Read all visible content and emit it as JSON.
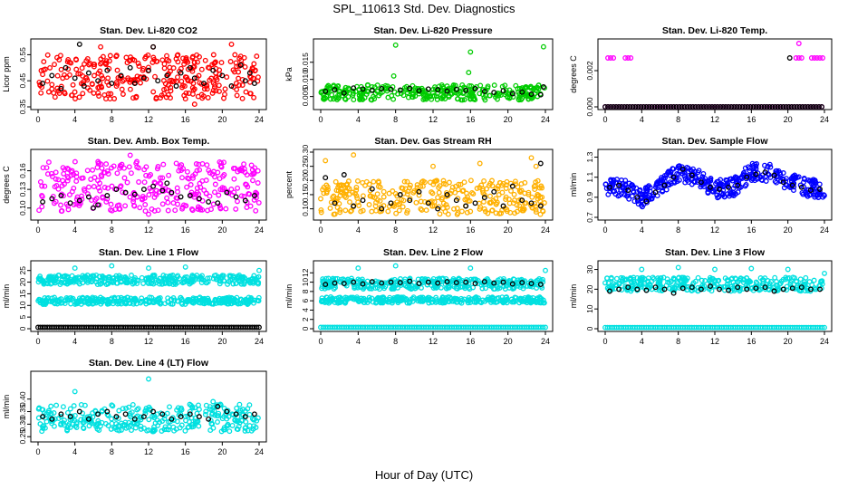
{
  "figure": {
    "title": "SPL_110613  Std. Dev. Diagnostics",
    "xlabel": "Hour of Day (UTC)"
  },
  "chart_data": [
    {
      "type": "scatter",
      "title": "Stan. Dev. Li-820 CO2",
      "ylabel": "Licor ppm",
      "xlim": [
        0,
        24
      ],
      "ylim": [
        0.35,
        0.6
      ],
      "xticks": [
        "0",
        "4",
        "8",
        "12",
        "16",
        "20",
        "24"
      ],
      "yticks": [
        "0.35",
        "0.45",
        "0.55"
      ],
      "series": [
        {
          "color": "#ff0000",
          "band": [
            0.38,
            0.55
          ],
          "outliers": [
            [
              6.8,
              0.58
            ],
            [
              12.5,
              0.58
            ],
            [
              21,
              0.59
            ],
            [
              17,
              0.36
            ]
          ]
        },
        {
          "color": "#000000",
          "x": [
            0.5,
            1.5,
            2.5,
            3,
            4,
            5,
            5.5,
            6.5,
            7.5,
            8,
            9,
            10,
            10.5,
            11.5,
            12,
            13,
            14,
            15,
            15.5,
            16.5,
            17,
            18,
            19,
            20,
            21,
            22,
            22.5,
            23,
            23.5,
            4.5,
            12.5
          ],
          "y": [
            0.44,
            0.47,
            0.42,
            0.5,
            0.46,
            0.43,
            0.48,
            0.45,
            0.49,
            0.44,
            0.47,
            0.5,
            0.44,
            0.46,
            0.49,
            0.45,
            0.47,
            0.43,
            0.48,
            0.5,
            0.46,
            0.44,
            0.49,
            0.47,
            0.43,
            0.51,
            0.45,
            0.48,
            0.44,
            0.59,
            0.58
          ]
        }
      ]
    },
    {
      "type": "scatter",
      "title": "Stan. Dev. Li-820 Pressure",
      "ylabel": "kPa",
      "xlim": [
        0,
        24
      ],
      "ylim": [
        0.002,
        0.021
      ],
      "xticks": [
        "0",
        "4",
        "8",
        "12",
        "16",
        "20",
        "24"
      ],
      "yticks": [
        "0.005",
        "0.010",
        "0.015"
      ],
      "series": [
        {
          "color": "#00cc00",
          "band": [
            0.004,
            0.0085
          ],
          "outliers": [
            [
              8,
              0.02
            ],
            [
              7.8,
              0.011
            ],
            [
              16,
              0.018
            ],
            [
              15.8,
              0.012
            ],
            [
              23.8,
              0.0195
            ]
          ]
        },
        {
          "color": "#000000",
          "x": [
            0.5,
            1.5,
            2.5,
            3.5,
            4.5,
            5.5,
            6.5,
            7.5,
            8.5,
            9.5,
            10.5,
            11.5,
            12.5,
            13.5,
            14.5,
            15.5,
            16.5,
            17.5,
            18.5,
            19.5,
            20.5,
            21.5,
            22.5,
            23.5,
            23.8
          ],
          "y": [
            0.0065,
            0.007,
            0.006,
            0.0075,
            0.0072,
            0.0068,
            0.0073,
            0.0071,
            0.0069,
            0.0074,
            0.0067,
            0.0072,
            0.007,
            0.0066,
            0.0071,
            0.0068,
            0.0073,
            0.0065,
            0.0062,
            0.0067,
            0.0058,
            0.0063,
            0.0057,
            0.0055,
            0.0078
          ]
        }
      ]
    },
    {
      "type": "scatter",
      "title": "Stan. Dev. Li-820 Temp.",
      "ylabel": "degrees C",
      "xlim": [
        0,
        24
      ],
      "ylim": [
        0,
        0.0036
      ],
      "xticks": [
        "0",
        "4",
        "8",
        "12",
        "16",
        "20",
        "24"
      ],
      "yticks": [
        "0.000",
        "0.002"
      ],
      "series": [
        {
          "color": "#ff00ff",
          "x": [
            0.3,
            0.6,
            0.9,
            2.2,
            2.5,
            2.8,
            20.9,
            21.2,
            21.5,
            22.6,
            22.9,
            23.2,
            23.5,
            23.8,
            21.2
          ],
          "y": [
            0.0027,
            0.0027,
            0.0027,
            0.0027,
            0.0027,
            0.0027,
            0.0027,
            0.0027,
            0.0027,
            0.0027,
            0.0027,
            0.0027,
            0.0027,
            0.0027,
            0.0035
          ],
          "zeroline": true
        },
        {
          "color": "#000000",
          "x": [
            20.2
          ],
          "y": [
            0.0027
          ],
          "zeroline": true
        }
      ]
    },
    {
      "type": "scatter",
      "title": "Stan. Dev. Amb. Box Temp.",
      "ylabel": "degrees C",
      "xlim": [
        0,
        24
      ],
      "ylim": [
        0.085,
        0.19
      ],
      "xticks": [
        "0",
        "4",
        "8",
        "12",
        "16",
        "20",
        "24"
      ],
      "yticks": [
        "0.10",
        "0.13",
        "0.16"
      ],
      "series": [
        {
          "color": "#ff00ff",
          "band": [
            0.095,
            0.175
          ],
          "outliers": [
            [
              10,
              0.185
            ],
            [
              12,
              0.09
            ]
          ]
        },
        {
          "color": "#000000",
          "x": [
            0.5,
            1.5,
            2.5,
            3.5,
            4.5,
            5.5,
            6.5,
            7.5,
            8.5,
            9.5,
            10.5,
            11.5,
            12.5,
            13.5,
            14.5,
            15.5,
            16.5,
            17.5,
            18.5,
            19.5,
            20.5,
            21.5,
            22.5,
            23.5,
            6,
            14
          ],
          "y": [
            0.11,
            0.115,
            0.12,
            0.108,
            0.112,
            0.118,
            0.105,
            0.12,
            0.13,
            0.125,
            0.122,
            0.13,
            0.135,
            0.128,
            0.125,
            0.118,
            0.12,
            0.115,
            0.11,
            0.108,
            0.125,
            0.118,
            0.112,
            0.12,
            0.1,
            0.14
          ]
        }
      ]
    },
    {
      "type": "scatter",
      "title": "Stan. Dev. Gas Stream RH",
      "ylabel": "percent",
      "xlim": [
        0,
        24
      ],
      "ylim": [
        0.07,
        0.3
      ],
      "xticks": [
        "0",
        "4",
        "8",
        "12",
        "16",
        "20",
        "24"
      ],
      "yticks": [
        "0.10",
        "0.15",
        "0.20",
        "0.25",
        "0.30"
      ],
      "series": [
        {
          "color": "#ffb000",
          "band": [
            0.08,
            0.2
          ],
          "outliers": [
            [
              0.5,
              0.27
            ],
            [
              3.5,
              0.29
            ],
            [
              12,
              0.25
            ],
            [
              17,
              0.26
            ],
            [
              22.5,
              0.28
            ],
            [
              23,
              0.25
            ]
          ]
        },
        {
          "color": "#000000",
          "x": [
            0.5,
            1.5,
            2.5,
            3.5,
            4.5,
            5.5,
            6.5,
            7.5,
            8.5,
            9.5,
            10.5,
            11.5,
            12.5,
            13.5,
            14.5,
            15.5,
            16.5,
            17.5,
            18.5,
            19.5,
            20.5,
            21.5,
            22.5,
            23.5,
            23.5
          ],
          "y": [
            0.21,
            0.12,
            0.22,
            0.11,
            0.13,
            0.17,
            0.1,
            0.12,
            0.15,
            0.13,
            0.16,
            0.12,
            0.1,
            0.15,
            0.13,
            0.11,
            0.12,
            0.14,
            0.16,
            0.11,
            0.18,
            0.13,
            0.12,
            0.11,
            0.26
          ]
        }
      ]
    },
    {
      "type": "scatter",
      "title": "Stan. Dev. Sample Flow",
      "ylabel": "ml/min",
      "xlim": [
        0,
        24
      ],
      "ylim": [
        0.7,
        1.35
      ],
      "xticks": [
        "0",
        "4",
        "8",
        "12",
        "16",
        "20",
        "24"
      ],
      "yticks": [
        "0.7",
        "0.9",
        "1.1",
        "1.3"
      ],
      "series": [
        {
          "color": "#0000ff",
          "curve": [
            [
              0,
              1.0
            ],
            [
              2,
              1.0
            ],
            [
              4,
              0.88
            ],
            [
              6,
              1.0
            ],
            [
              8,
              1.15
            ],
            [
              10,
              1.1
            ],
            [
              12,
              0.98
            ],
            [
              14,
              1.0
            ],
            [
              16,
              1.15
            ],
            [
              18,
              1.15
            ],
            [
              20,
              1.05
            ],
            [
              22,
              1.0
            ],
            [
              24,
              0.98
            ]
          ],
          "spread": 0.09
        },
        {
          "color": "#000000",
          "x": [
            0.5,
            1.5,
            2.5,
            3.5,
            4.5,
            5.5,
            6.5,
            7.5,
            8.5,
            9.5,
            10.5,
            11.5,
            12.5,
            13.5,
            14.5,
            15.5,
            16.5,
            17.5,
            18.5,
            19.5,
            20.5,
            21.5,
            22.5,
            23.5
          ],
          "y": [
            1.0,
            1.02,
            0.97,
            0.9,
            0.86,
            0.95,
            1.02,
            1.1,
            1.18,
            1.12,
            1.05,
            1.0,
            0.98,
            1.0,
            1.02,
            1.1,
            1.13,
            1.15,
            1.12,
            1.05,
            1.02,
            1.0,
            0.97,
            0.98
          ]
        }
      ]
    },
    {
      "type": "scatter",
      "title": "Stan. Dev. Line 1 Flow",
      "ylabel": "ml/min",
      "xlim": [
        0,
        24
      ],
      "ylim": [
        0,
        28
      ],
      "xticks": [
        "0",
        "4",
        "8",
        "12",
        "16",
        "20",
        "24"
      ],
      "yticks": [
        "0",
        "5",
        "10",
        "15",
        "20",
        "25"
      ],
      "series": [
        {
          "color": "#00e0e0",
          "bands": [
            [
              19,
              23
            ],
            [
              10.5,
              13.5
            ]
          ],
          "outliers": [
            [
              4,
              26
            ],
            [
              8,
              27
            ],
            [
              12,
              26
            ],
            [
              16,
              26.5
            ],
            [
              24,
              25
            ]
          ]
        },
        {
          "color": "#000000",
          "zeroband": 0.6
        }
      ]
    },
    {
      "type": "scatter",
      "title": "Stan. Dev. Line 2 Flow",
      "ylabel": "ml/min",
      "xlim": [
        0,
        24
      ],
      "ylim": [
        0,
        14
      ],
      "xticks": [
        "0",
        "4",
        "8",
        "12",
        "16",
        "20",
        "24"
      ],
      "yticks": [
        "0",
        "2",
        "4",
        "6",
        "8",
        "10",
        "12"
      ],
      "series": [
        {
          "color": "#00e0e0",
          "bands": [
            [
              8.5,
              10.8
            ],
            [
              5.5,
              6.8
            ]
          ],
          "zeroband": 0.3,
          "outliers": [
            [
              4,
              13
            ],
            [
              8,
              13.5
            ],
            [
              16,
              13
            ],
            [
              24,
              12.5
            ]
          ]
        },
        {
          "color": "#000000",
          "x": [
            0.5,
            1.5,
            2.5,
            3.5,
            4.5,
            5.5,
            6.5,
            7.5,
            8.5,
            9.5,
            10.5,
            11.5,
            12.5,
            13.5,
            14.5,
            15.5,
            16.5,
            17.5,
            18.5,
            19.5,
            20.5,
            21.5,
            22.5,
            23.5
          ],
          "y": [
            9.5,
            9.8,
            9.7,
            10,
            9.6,
            10.1,
            9.8,
            10,
            9.9,
            10.2,
            9.7,
            10,
            9.8,
            10.1,
            9.9,
            10,
            9.7,
            10.1,
            9.8,
            10,
            9.6,
            9.9,
            9.7,
            9.5
          ]
        }
      ]
    },
    {
      "type": "scatter",
      "title": "Stan. Dev. Line 3 Flow",
      "ylabel": "ml/min",
      "xlim": [
        0,
        24
      ],
      "ylim": [
        0,
        33
      ],
      "xticks": [
        "0",
        "4",
        "8",
        "12",
        "16",
        "20",
        "24"
      ],
      "yticks": [
        "0",
        "10",
        "20",
        "30"
      ],
      "series": [
        {
          "color": "#00e0e0",
          "bands": [
            [
              19,
              26
            ]
          ],
          "zeroband": 0.6,
          "outliers": [
            [
              4,
              30
            ],
            [
              8,
              31
            ],
            [
              12,
              30
            ],
            [
              16,
              30.5
            ],
            [
              20,
              30
            ],
            [
              24,
              28
            ]
          ]
        },
        {
          "color": "#000000",
          "x": [
            0.5,
            1.5,
            2.5,
            3.5,
            4.5,
            5.5,
            6.5,
            7.5,
            8.5,
            9.5,
            10.5,
            11.5,
            12.5,
            13.5,
            14.5,
            15.5,
            16.5,
            17.5,
            18.5,
            19.5,
            20.5,
            21.5,
            22.5,
            23.5
          ],
          "y": [
            19,
            20,
            21,
            20,
            19.5,
            21,
            20,
            18,
            20.5,
            21,
            20,
            21.5,
            20,
            19.5,
            21,
            20,
            20.5,
            21,
            19,
            20,
            20.5,
            21,
            20,
            20
          ]
        }
      ]
    },
    {
      "type": "scatter",
      "title": "Stan. Dev. Line 4 (LT) Flow",
      "ylabel": "ml/min",
      "xlim": [
        0,
        24
      ],
      "ylim": [
        0.24,
        0.5
      ],
      "xticks": [
        "0",
        "4",
        "8",
        "12",
        "16",
        "20",
        "24"
      ],
      "yticks": [
        "0.25",
        "0.30",
        "0.35",
        "0.40"
      ],
      "series": [
        {
          "color": "#00e0e0",
          "band": [
            0.27,
            0.38
          ],
          "outliers": [
            [
              4,
              0.43
            ],
            [
              12,
              0.48
            ],
            [
              19,
              0.39
            ]
          ]
        },
        {
          "color": "#000000",
          "x": [
            0.5,
            1.5,
            2.5,
            3.5,
            4.5,
            5.5,
            6.5,
            7.5,
            8.5,
            9.5,
            10.5,
            11.5,
            12.5,
            13.5,
            14.5,
            15.5,
            16.5,
            17.5,
            18.5,
            19.5,
            20.5,
            21.5,
            22.5,
            23.5
          ],
          "y": [
            0.33,
            0.32,
            0.34,
            0.33,
            0.35,
            0.32,
            0.34,
            0.35,
            0.33,
            0.34,
            0.32,
            0.33,
            0.35,
            0.34,
            0.32,
            0.33,
            0.34,
            0.33,
            0.32,
            0.37,
            0.35,
            0.34,
            0.33,
            0.34
          ]
        }
      ]
    }
  ]
}
